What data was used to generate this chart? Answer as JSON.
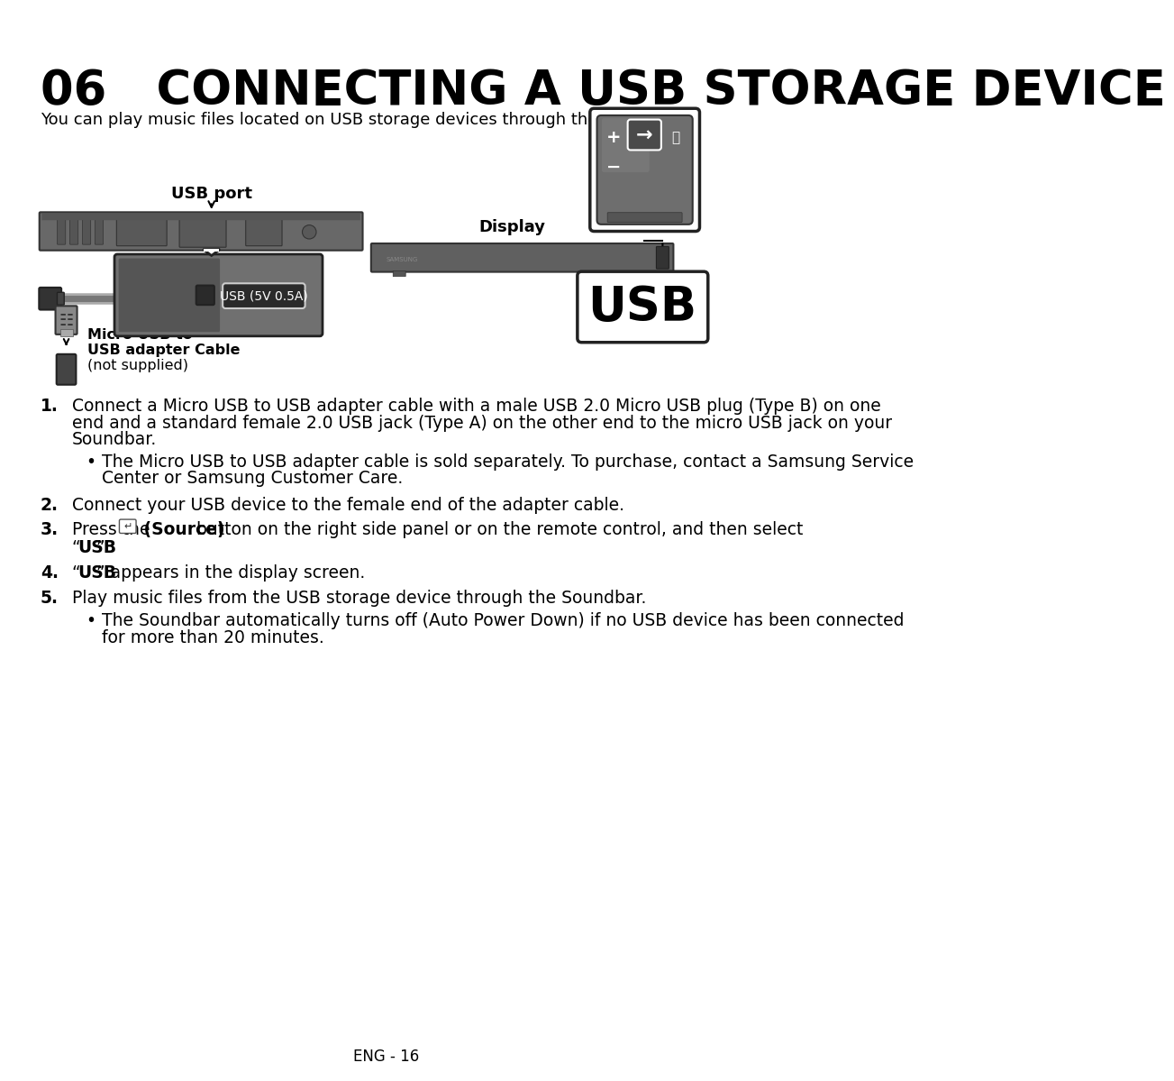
{
  "title": "06   CONNECTING A USB STORAGE DEVICE",
  "subtitle": "You can play music files located on USB storage devices through the Soundbar.",
  "label_usb_port": "USB port",
  "label_display": "Display",
  "label_usb_big": "USB",
  "label_usb_5v": "USB (5V 0.5A)",
  "label_micro_usb_line1": "Micro USB to",
  "label_micro_usb_line2": "USB adapter Cable",
  "label_micro_usb_line3": "(not supplied)",
  "footer": "ENG - 16",
  "bg_color": "#ffffff",
  "text_color": "#000000",
  "sb_color": "#686868",
  "sb_dark": "#4a4a4a",
  "sb_light": "#909090",
  "usb_box_dark": "#5a5a5a",
  "usb_box_light": "#888888",
  "panel_face": "#6e6e6e",
  "panel_border": "#222222",
  "panel_highlight": "#909090",
  "callout_border": "#222222"
}
